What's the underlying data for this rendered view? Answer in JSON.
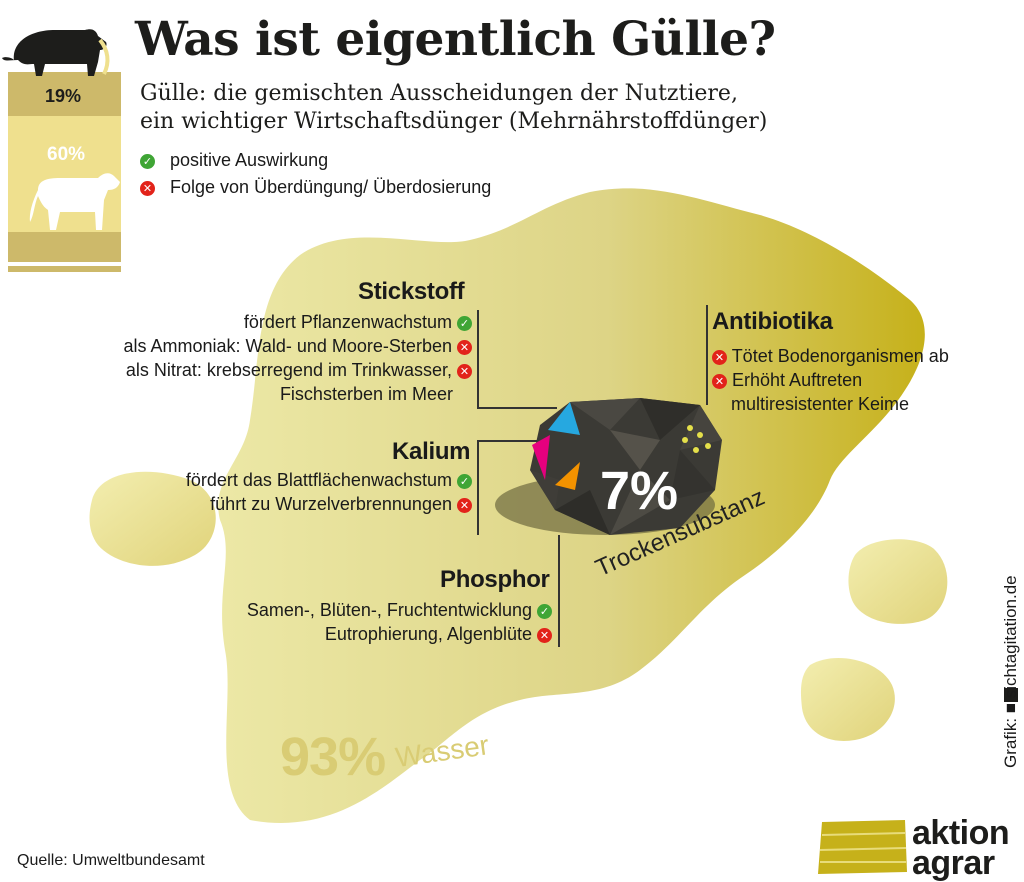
{
  "title": "Was ist eigentlich Gülle?",
  "subtitle_line1": "Gülle: die gemischten Ausscheidungen der Nutztiere,",
  "subtitle_line2": "ein wichtiger Wirtschaftsdünger (Mehrnährstoffdünger)",
  "legend": {
    "positive": "positive Auswirkung",
    "negative": "Folge von Überdüngung/ Überdosierung"
  },
  "animals": {
    "pig_pct": "19%",
    "cow_pct": "60%"
  },
  "stickstoff": {
    "heading": "Stickstoff",
    "items": [
      {
        "text": "fördert Pflanzenwachstum",
        "type": "positive"
      },
      {
        "text": "als Ammoniak: Wald- und Moore-Sterben",
        "type": "negative"
      },
      {
        "text": "als Nitrat: krebserregend im Trinkwasser,",
        "type": "negative"
      },
      {
        "text": "Fischsterben im Meer",
        "type": "none"
      }
    ]
  },
  "kalium": {
    "heading": "Kalium",
    "items": [
      {
        "text": "fördert das Blattflächenwachstum",
        "type": "positive"
      },
      {
        "text": "führt zu Wurzelverbrennungen",
        "type": "negative"
      }
    ]
  },
  "phosphor": {
    "heading": "Phosphor",
    "items": [
      {
        "text": "Samen-, Blüten-, Fruchtentwicklung",
        "type": "positive"
      },
      {
        "text": "Eutrophierung, Algenblüte",
        "type": "negative"
      }
    ]
  },
  "antibiotika": {
    "heading": "Antibiotika",
    "items": [
      {
        "text": "Tötet Bodenorganismen ab",
        "type": "negative"
      },
      {
        "text": "Erhöht Auftreten",
        "type": "negative"
      },
      {
        "text": "multiresistenter Keime",
        "type": "none"
      }
    ]
  },
  "water": {
    "pct": "93%",
    "label": "Wasser"
  },
  "dry": {
    "pct": "7%",
    "label": "Trockensubstanz"
  },
  "credit": "Grafik: ■ sichtagitation.de",
  "source": "Quelle: Umweltbundesamt",
  "brand": {
    "line1": "aktion",
    "line2": "agrar"
  },
  "colors": {
    "puddle_light": "#ece8a6",
    "puddle_dark": "#c8b21c",
    "positive": "#3fa535",
    "negative": "#e2231a",
    "stone": "#3b3a35"
  }
}
